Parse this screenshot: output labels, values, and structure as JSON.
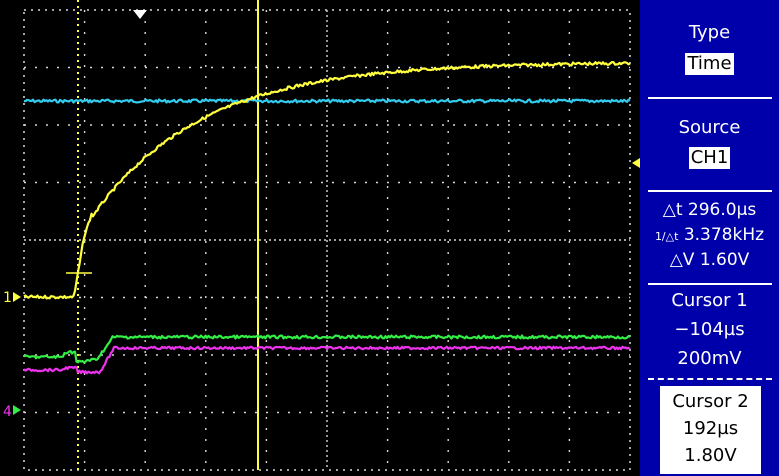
{
  "menu": {
    "type": {
      "label": "Type",
      "value": "Time"
    },
    "source": {
      "label": "Source",
      "value": "CH1"
    },
    "delta": {
      "dt": "296.0µs",
      "freq": "3.378kHz",
      "dv": "1.60V"
    },
    "cursor1": {
      "label": "Cursor 1",
      "time": "−104µs",
      "volt": "200mV"
    },
    "cursor2": {
      "label": "Cursor 2",
      "time": "192µs",
      "volt": "1.80V"
    }
  },
  "markers": {
    "ch1": "1",
    "ch4": "4"
  },
  "colors": {
    "ch1": "#ffff40",
    "ch2": "#33ccee",
    "ch3": "#33ee44",
    "ch4": "#ee33ee",
    "cursor": "#ffff40",
    "menu_bg": "#0000aa",
    "grid": "#d8d8d8"
  },
  "icons": {
    "trigger_position": "arrow-down-icon",
    "trigger_level": "arrow-left-icon",
    "delta_icon": "delta-icon"
  }
}
